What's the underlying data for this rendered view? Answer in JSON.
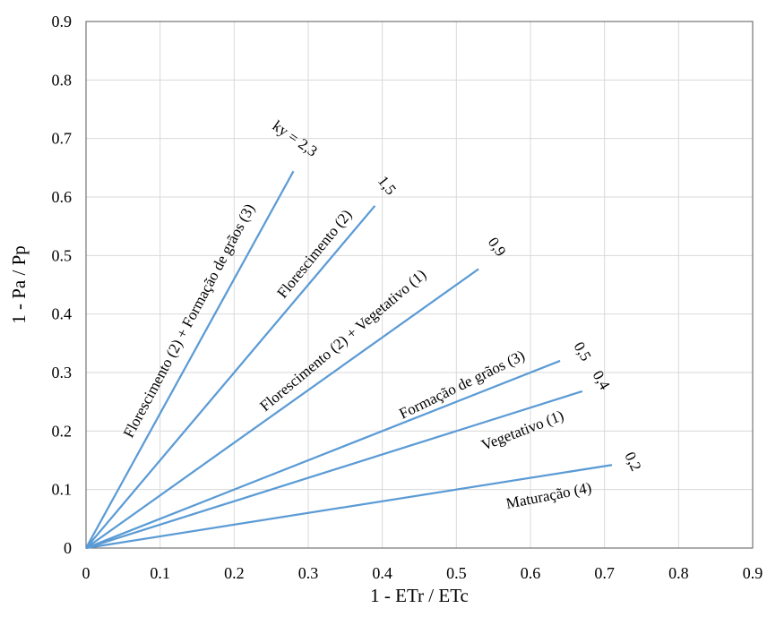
{
  "chart_data": {
    "type": "line",
    "xlabel": "1 - ETr / ETc",
    "ylabel": "1 - Pa / Pp",
    "xlim": [
      0,
      0.9
    ],
    "ylim": [
      0,
      0.9
    ],
    "x_ticks": [
      "0",
      "0.1",
      "0.2",
      "0.3",
      "0.4",
      "0.5",
      "0.6",
      "0.7",
      "0.8",
      "0.9"
    ],
    "y_ticks": [
      "0",
      "0.1",
      "0.2",
      "0.3",
      "0.4",
      "0.5",
      "0.6",
      "0.7",
      "0.8",
      "0.9"
    ],
    "grid": true,
    "line_color": "#5b9bd5",
    "series": [
      {
        "name": "Florescimento (2) + Formação de grãos (3)",
        "ky": "ky = 2,3",
        "x": [
          0,
          0.28
        ],
        "y": [
          0,
          0.644
        ]
      },
      {
        "name": "Florescimento (2)",
        "ky": "1,5",
        "x": [
          0,
          0.39
        ],
        "y": [
          0,
          0.585
        ]
      },
      {
        "name": "Florescimento (2) + Vegetativo (1)",
        "ky": "0,9",
        "x": [
          0,
          0.53
        ],
        "y": [
          0,
          0.477
        ]
      },
      {
        "name": "Formação de grãos (3)",
        "ky": "0,5",
        "x": [
          0,
          0.64
        ],
        "y": [
          0,
          0.32
        ]
      },
      {
        "name": "Vegetativo (1)",
        "ky": "0,4",
        "x": [
          0,
          0.67
        ],
        "y": [
          0,
          0.268
        ]
      },
      {
        "name": "Maturação (4)",
        "ky": "0,2",
        "x": [
          0,
          0.71
        ],
        "y": [
          0,
          0.142
        ]
      }
    ]
  }
}
